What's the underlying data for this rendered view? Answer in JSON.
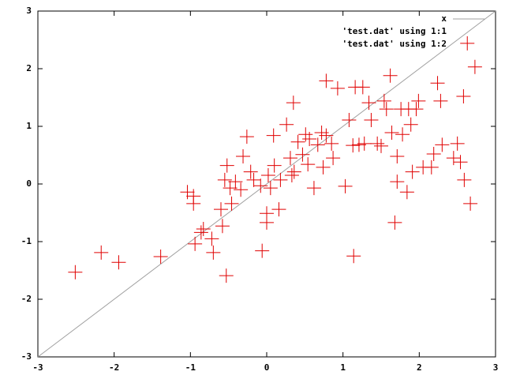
{
  "chart_data": {
    "type": "scatter",
    "xlim": [
      -3,
      3
    ],
    "ylim": [
      -3,
      3
    ],
    "xticks": [
      -3,
      -2,
      -1,
      0,
      1,
      2,
      3
    ],
    "yticks": [
      -3,
      -2,
      -1,
      0,
      1,
      2,
      3
    ],
    "legend": "top-right",
    "series": [
      {
        "name": "x",
        "kind": "line",
        "color": "#a0a0a0",
        "x": [
          -3,
          3
        ],
        "values": [
          -3,
          3
        ]
      },
      {
        "name": "'test.dat' using 1:1",
        "kind": "points",
        "color": "#e00000",
        "x": [],
        "values": []
      },
      {
        "name": "'test.dat' using 1:2",
        "kind": "points",
        "color": "#e00000",
        "x": [
          -2.51,
          -2.17,
          -1.94,
          -1.39,
          -1.04,
          -0.96,
          -0.96,
          -0.94,
          -0.86,
          -0.83,
          -0.7,
          -0.72,
          -0.6,
          -0.58,
          -0.55,
          -0.52,
          -0.53,
          -0.48,
          -0.46,
          -0.41,
          -0.34,
          -0.31,
          -0.26,
          -0.21,
          -0.17,
          -0.08,
          -0.06,
          0.0,
          0.0,
          0.02,
          0.05,
          0.09,
          0.1,
          0.16,
          0.18,
          0.26,
          0.31,
          0.33,
          0.35,
          0.36,
          0.41,
          0.47,
          0.51,
          0.54,
          0.56,
          0.62,
          0.67,
          0.72,
          0.74,
          0.78,
          0.78,
          0.85,
          0.87,
          0.93,
          1.03,
          1.08,
          1.13,
          1.14,
          1.16,
          1.21,
          1.26,
          1.28,
          1.34,
          1.37,
          1.45,
          1.5,
          1.54,
          1.57,
          1.62,
          1.64,
          1.68,
          1.71,
          1.71,
          1.76,
          1.78,
          1.84,
          1.86,
          1.89,
          1.91,
          1.96,
          1.99,
          2.05,
          2.16,
          2.19,
          2.24,
          2.28,
          2.3,
          2.45,
          2.5,
          2.54,
          2.58,
          2.59,
          2.63,
          2.67,
          2.73
        ],
        "values": [
          -1.53,
          -1.19,
          -1.36,
          -1.26,
          -0.14,
          -0.34,
          -0.21,
          -1.04,
          -0.84,
          -0.78,
          -1.19,
          -0.95,
          -0.44,
          -0.73,
          0.07,
          0.32,
          -1.59,
          -0.07,
          -0.34,
          0.04,
          -0.1,
          0.48,
          0.82,
          0.21,
          0.07,
          -0.03,
          -1.16,
          -0.67,
          -0.51,
          0.15,
          -0.07,
          0.84,
          0.32,
          -0.44,
          0.07,
          1.03,
          0.45,
          0.15,
          1.41,
          0.21,
          0.73,
          0.51,
          0.86,
          0.34,
          0.78,
          -0.07,
          0.68,
          0.89,
          0.29,
          1.79,
          0.84,
          0.7,
          0.45,
          1.66,
          -0.04,
          1.11,
          0.67,
          -1.25,
          1.68,
          0.68,
          1.68,
          0.7,
          1.41,
          1.11,
          0.7,
          0.66,
          1.44,
          1.3,
          1.88,
          0.89,
          -0.67,
          0.48,
          0.04,
          1.3,
          0.86,
          -0.14,
          1.3,
          1.03,
          0.21,
          1.3,
          1.44,
          0.29,
          0.29,
          0.52,
          1.75,
          1.44,
          0.68,
          0.45,
          0.7,
          0.38,
          1.52,
          0.07,
          2.44,
          -0.34,
          2.03
        ]
      }
    ]
  }
}
